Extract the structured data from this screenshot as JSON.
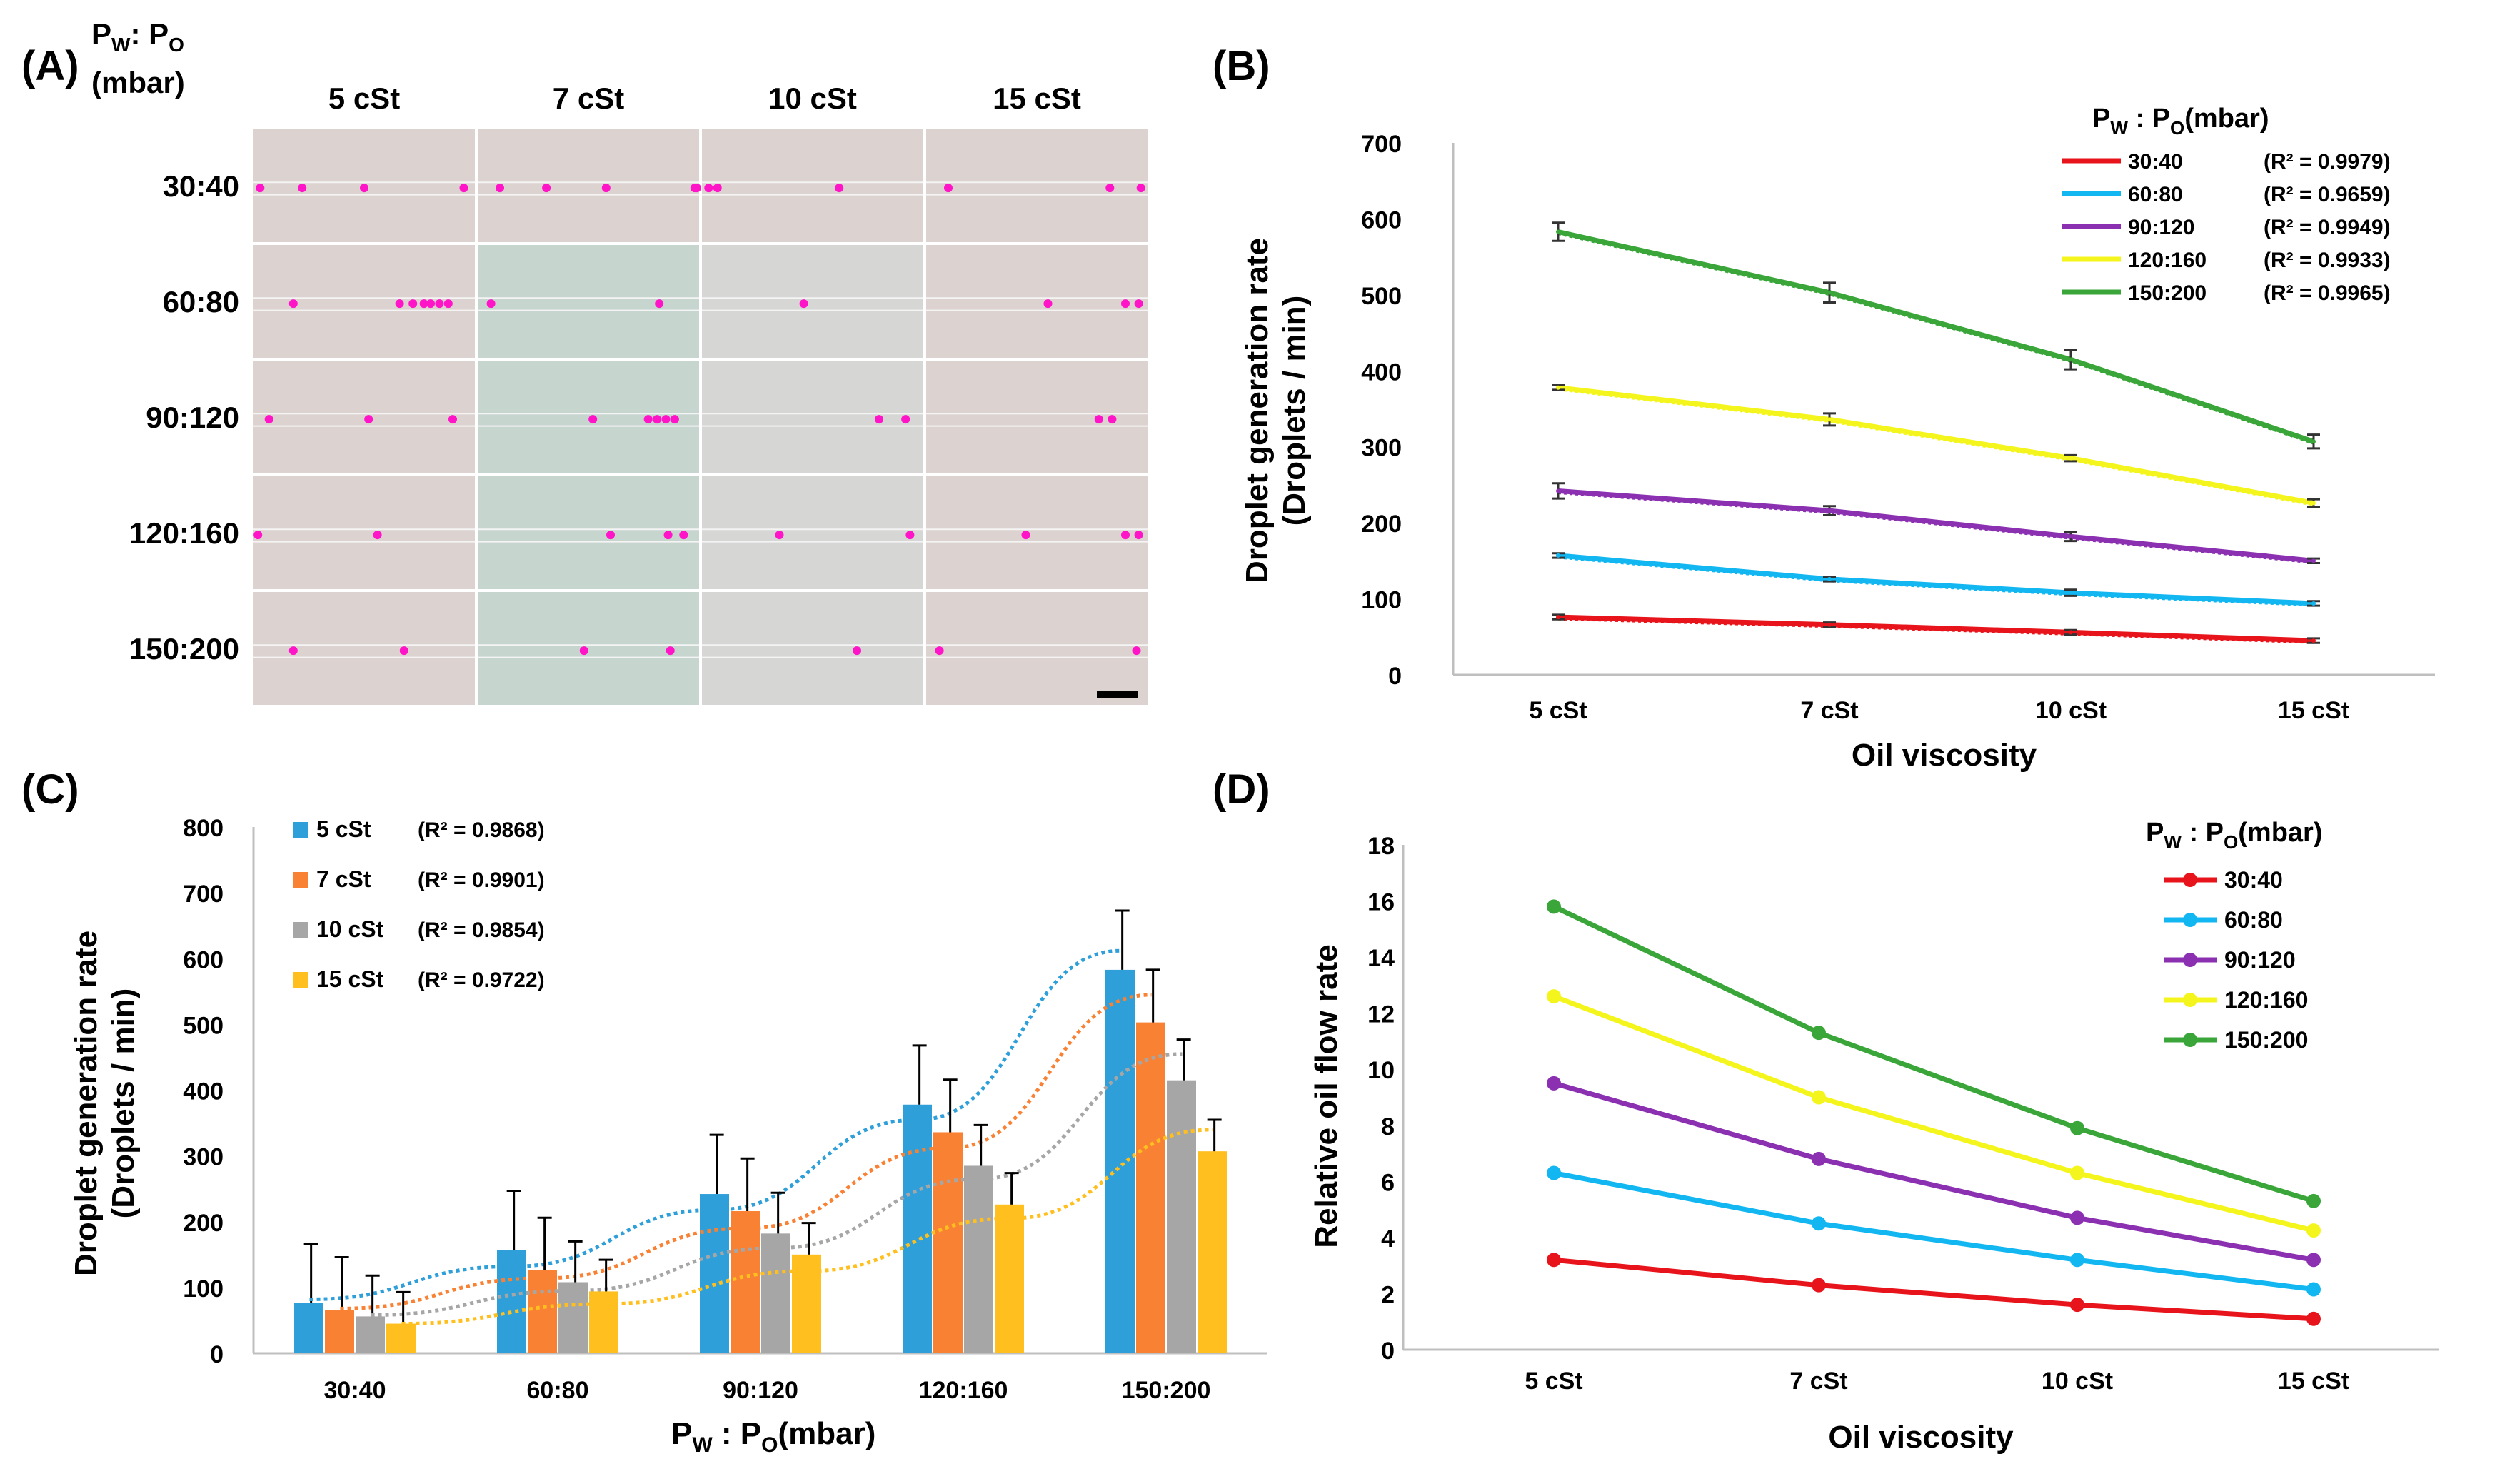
{
  "panel_a": {
    "label": "(A)",
    "header_line1_main": "P",
    "header_line1_sub1": "W",
    "header_line1_sep": ": P",
    "header_line1_sub2": "O",
    "header_line2": "(mbar)",
    "columns": [
      "5 cSt",
      "7 cSt",
      "10 cSt",
      "15 cSt"
    ],
    "rows": [
      "30:40",
      "60:80",
      "90:120",
      "120:160",
      "150:200"
    ],
    "image_colors": {
      "pink": "#dcd3d1",
      "gray": "#d6d6d5",
      "teal": "#c7d5cf",
      "droplet": "#ff14c8"
    },
    "scale_bar": "scale bar"
  },
  "panel_b": {
    "label": "(B)",
    "legend_title_main": "P",
    "legend_title_sub1": "W",
    "legend_title_sep": " : P",
    "legend_title_sub2": "O",
    "legend_title_unit": "(mbar)",
    "chart_data": {
      "type": "line",
      "title": "",
      "xlabel": "Oil viscosity",
      "ylabel_line1": "Droplet generation rate",
      "ylabel_line2": "(Droplets / min)",
      "categories": [
        "5 cSt",
        "7 cSt",
        "10 cSt",
        "15 cSt"
      ],
      "ylim": [
        0,
        700
      ],
      "yticks": [
        0,
        100,
        200,
        300,
        400,
        500,
        600,
        700
      ],
      "ytick_labels": [
        "0",
        "100",
        "200",
        "300",
        "400",
        "500",
        "600",
        "700"
      ],
      "series": [
        {
          "name": "30:40",
          "r2": "(R² = 0.9979)",
          "color": "#e8141b",
          "values": [
            76,
            66,
            56,
            45
          ],
          "errors": [
            3,
            3,
            3,
            3
          ]
        },
        {
          "name": "60:80",
          "r2": "(R² = 0.9659)",
          "color": "#12b6f0",
          "values": [
            157,
            126,
            108,
            94
          ],
          "errors": [
            3,
            3,
            4,
            3
          ]
        },
        {
          "name": "90:120",
          "r2": "(R² = 0.9949)",
          "color": "#8a30b0",
          "values": [
            242,
            216,
            182,
            150
          ],
          "errors": [
            10,
            6,
            6,
            3
          ]
        },
        {
          "name": "120:160",
          "r2": "(R² = 0.9933)",
          "color": "#f5f51e",
          "values": [
            378,
            336,
            285,
            226
          ],
          "errors": [
            3,
            8,
            4,
            5
          ]
        },
        {
          "name": "150:200",
          "r2": "(R² = 0.9965)",
          "color": "#3aa63a",
          "values": [
            583,
            503,
            415,
            307
          ],
          "errors": [
            12,
            13,
            13,
            9
          ]
        }
      ]
    }
  },
  "panel_c": {
    "label": "(C)",
    "xlabel_main": "P",
    "xlabel_sub1": "W",
    "xlabel_sep": " : P",
    "xlabel_sub2": "O",
    "xlabel_unit": "(mbar)",
    "chart_data": {
      "type": "bar",
      "title": "",
      "ylabel_line1": "Droplet generation rate",
      "ylabel_line2": "(Droplets / min)",
      "categories": [
        "30:40",
        "60:80",
        "90:120",
        "120:160",
        "150:200"
      ],
      "ylim": [
        0,
        800
      ],
      "yticks": [
        0,
        100,
        200,
        300,
        400,
        500,
        600,
        700,
        800
      ],
      "ytick_labels": [
        "0",
        "100",
        "200",
        "300",
        "400",
        "500",
        "600",
        "700",
        "800"
      ],
      "series": [
        {
          "name": "5 cSt",
          "r2": "(R² = 0.9868)",
          "color": "#2e9fd9",
          "values": [
            76,
            157,
            242,
            378,
            583
          ],
          "errors": [
            90,
            90,
            90,
            90,
            90
          ],
          "trend": [
            82,
            132,
            218,
            355,
            612
          ]
        },
        {
          "name": "7 cSt",
          "r2": "(R² = 0.9901)",
          "color": "#f98133",
          "values": [
            66,
            126,
            216,
            336,
            503
          ],
          "errors": [
            80,
            80,
            80,
            80,
            80
          ],
          "trend": [
            68,
            114,
            190,
            312,
            545
          ]
        },
        {
          "name": "10 cSt",
          "r2": "(R² = 0.9854)",
          "color": "#a6a6a6",
          "values": [
            56,
            108,
            182,
            285,
            415
          ],
          "errors": [
            62,
            62,
            62,
            62,
            62
          ],
          "trend": [
            58,
            95,
            160,
            265,
            455
          ]
        },
        {
          "name": "15 cSt",
          "r2": "(R² = 0.9722)",
          "color": "#ffc01f",
          "values": [
            45,
            94,
            150,
            226,
            307
          ],
          "errors": [
            48,
            48,
            48,
            48,
            48
          ],
          "trend": [
            45,
            75,
            125,
            205,
            340
          ]
        }
      ]
    }
  },
  "panel_d": {
    "label": "(D)",
    "legend_title_main": "P",
    "legend_title_sub1": "W",
    "legend_title_sep": " : P",
    "legend_title_sub2": "O",
    "legend_title_unit": "(mbar)",
    "chart_data": {
      "type": "line",
      "title": "",
      "xlabel": "Oil viscosity",
      "ylabel": "Relative oil flow rate",
      "categories": [
        "5 cSt",
        "7 cSt",
        "10 cSt",
        "15 cSt"
      ],
      "ylim": [
        0,
        18
      ],
      "yticks": [
        0,
        2,
        4,
        6,
        8,
        10,
        12,
        14,
        16,
        18
      ],
      "ytick_labels": [
        "0",
        "2",
        "4",
        "6",
        "8",
        "10",
        "12",
        "14",
        "16",
        "18"
      ],
      "series": [
        {
          "name": "30:40",
          "color": "#e8141b",
          "values": [
            3.2,
            2.3,
            1.6,
            1.1
          ]
        },
        {
          "name": "60:80",
          "color": "#12b6f0",
          "values": [
            6.3,
            4.5,
            3.2,
            2.15
          ]
        },
        {
          "name": "90:120",
          "color": "#8a30b0",
          "values": [
            9.5,
            6.8,
            4.7,
            3.2
          ]
        },
        {
          "name": "120:160",
          "color": "#f5f51e",
          "values": [
            12.6,
            9.0,
            6.3,
            4.25
          ]
        },
        {
          "name": "150:200",
          "color": "#3aa63a",
          "values": [
            15.8,
            11.3,
            7.9,
            5.3
          ]
        }
      ]
    }
  }
}
